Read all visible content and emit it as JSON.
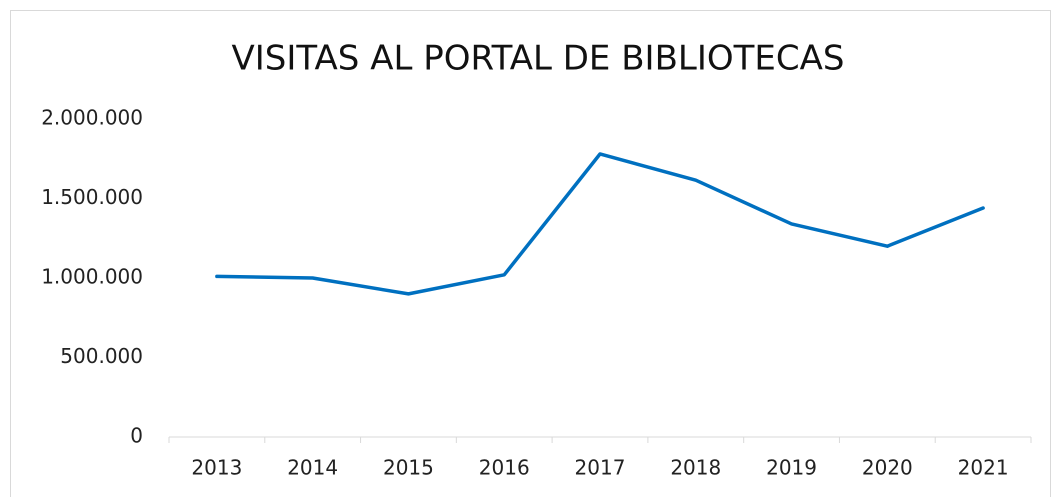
{
  "chart_data": {
    "type": "line",
    "title": "VISITAS AL PORTAL DE BIBLIOTECAS",
    "categories": [
      "2013",
      "2014",
      "2015",
      "2016",
      "2017",
      "2018",
      "2019",
      "2020",
      "2021"
    ],
    "values": [
      1010000,
      1000000,
      900000,
      1020000,
      1780000,
      1615000,
      1340000,
      1200000,
      1440000
    ],
    "color": "#0070c0",
    "ylim": [
      0,
      2000000
    ],
    "yticks": [
      0,
      {
        "value": 500000,
        "label": "500.000"
      },
      {
        "value": 1000000,
        "label": "1.000.000"
      },
      {
        "value": 1500000,
        "label": "1.500.000"
      },
      {
        "value": 2000000,
        "label": "2.000.000"
      }
    ],
    "grid": false
  }
}
